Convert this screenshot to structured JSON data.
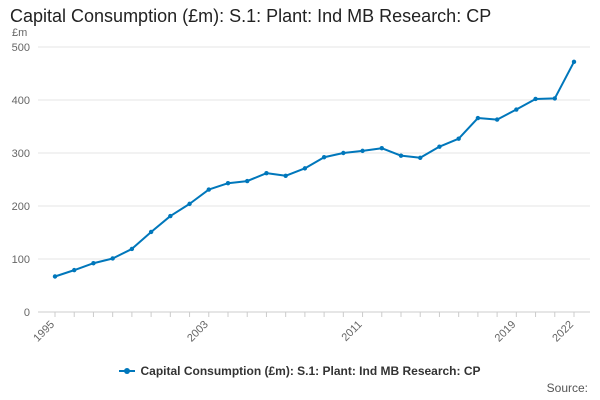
{
  "title": "Capital Consumption (£m): S.1: Plant: Ind MB Research: CP",
  "source": "Source:",
  "colors": {
    "series": "#0077bb",
    "grid": "#e6e6e6",
    "axis": "#cccccc"
  },
  "chart_data": {
    "type": "line",
    "title": "Capital Consumption (£m): S.1: Plant: Ind MB Research: CP",
    "ylabel": "£m",
    "xlabel": "",
    "ylim": [
      0,
      500
    ],
    "yticks": [
      0,
      100,
      200,
      300,
      400,
      500
    ],
    "xlim": [
      1995,
      2022
    ],
    "xtick_labels": [
      "1995",
      "2003",
      "2011",
      "2019",
      "2022"
    ],
    "grid": true,
    "legend_position": "bottom",
    "x": [
      1995,
      1996,
      1997,
      1998,
      1999,
      2000,
      2001,
      2002,
      2003,
      2004,
      2005,
      2006,
      2007,
      2008,
      2009,
      2010,
      2011,
      2012,
      2013,
      2014,
      2015,
      2016,
      2017,
      2018,
      2019,
      2020,
      2021,
      2022
    ],
    "series": [
      {
        "name": "Capital Consumption (£m): S.1: Plant: Ind MB Research: CP",
        "values": [
          67,
          79,
          92,
          101,
          119,
          151,
          181,
          204,
          231,
          243,
          247,
          262,
          257,
          271,
          292,
          300,
          304,
          309,
          295,
          291,
          312,
          327,
          366,
          363,
          382,
          402,
          403,
          472
        ]
      }
    ]
  }
}
